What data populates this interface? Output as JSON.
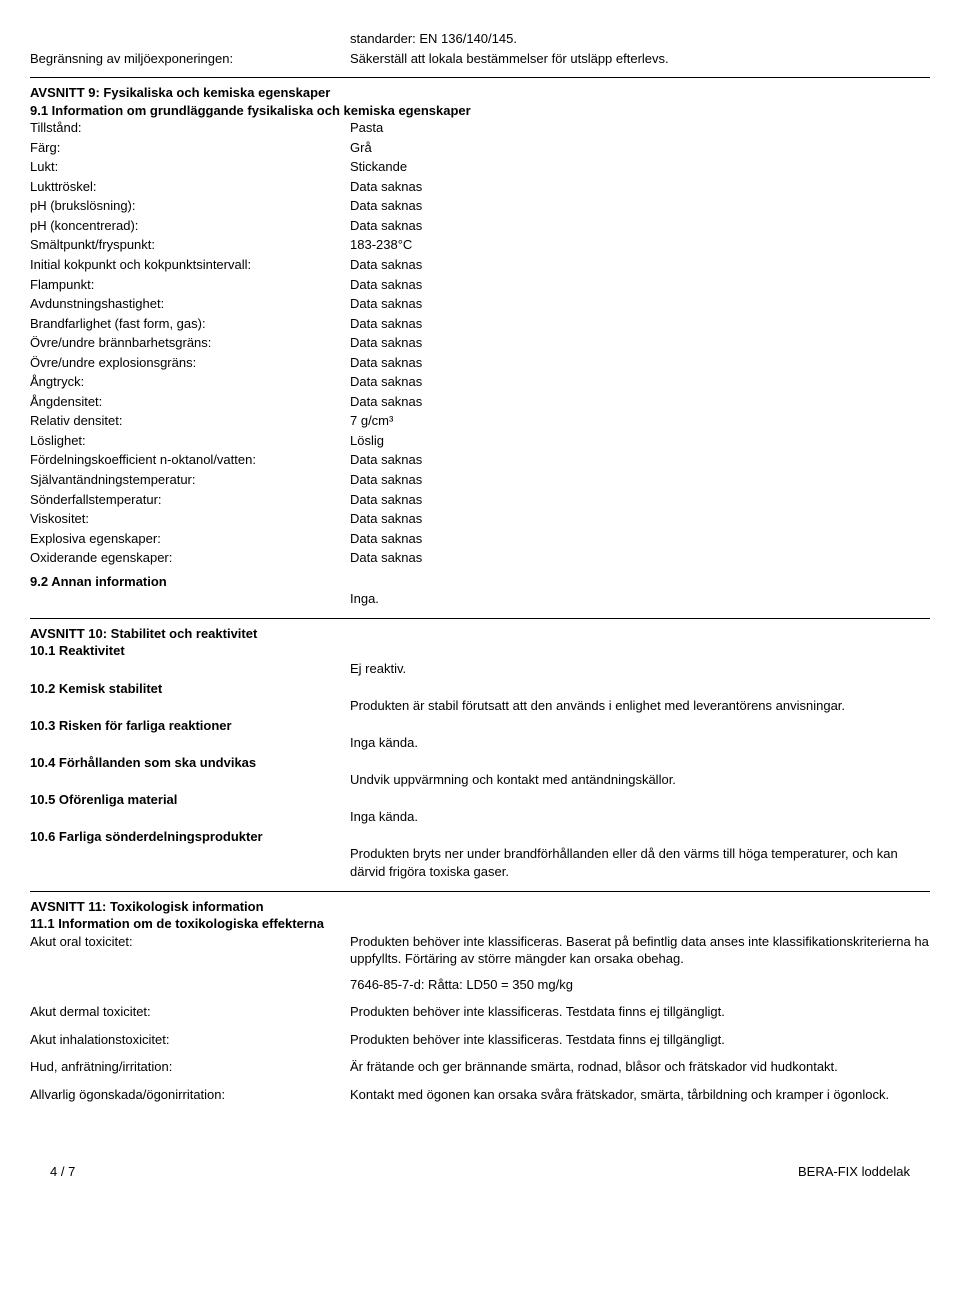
{
  "top": {
    "standards": {
      "label": "",
      "value": "standarder: EN 136/140/145."
    },
    "limit": {
      "label": "Begränsning av miljöexponeringen:",
      "value": "Säkerställ att lokala bestämmelser för utsläpp efterlevs."
    }
  },
  "sec9": {
    "title": "AVSNITT 9: Fysikaliska och kemiska egenskaper",
    "sub1": "9.1 Information om grundläggande fysikaliska och kemiska egenskaper",
    "rows": {
      "r0": {
        "label": "Tillstånd:",
        "value": "Pasta"
      },
      "r1": {
        "label": "Färg:",
        "value": "Grå"
      },
      "r2": {
        "label": "Lukt:",
        "value": "Stickande"
      },
      "r3": {
        "label": "Lukttröskel:",
        "value": "Data saknas"
      },
      "r4": {
        "label": "pH (brukslösning):",
        "value": "Data saknas"
      },
      "r5": {
        "label": "pH (koncentrerad):",
        "value": "Data saknas"
      },
      "r6": {
        "label": "Smältpunkt/fryspunkt:",
        "value": "183-238°C"
      },
      "r7": {
        "label": "Initial kokpunkt och kokpunktsintervall:",
        "value": "Data saknas"
      },
      "r8": {
        "label": "Flampunkt:",
        "value": "Data saknas"
      },
      "r9": {
        "label": "Avdunstningshastighet:",
        "value": "Data saknas"
      },
      "r10": {
        "label": "Brandfarlighet (fast form, gas):",
        "value": "Data saknas"
      },
      "r11": {
        "label": "Övre/undre brännbarhetsgräns:",
        "value": "Data saknas"
      },
      "r12": {
        "label": "Övre/undre explosionsgräns:",
        "value": "Data saknas"
      },
      "r13": {
        "label": "Ångtryck:",
        "value": "Data saknas"
      },
      "r14": {
        "label": "Ångdensitet:",
        "value": "Data saknas"
      },
      "r15": {
        "label": "Relativ densitet:",
        "value": "7 g/cm³"
      },
      "r16": {
        "label": "Löslighet:",
        "value": "Löslig"
      },
      "r17": {
        "label": "Fördelningskoefficient n-oktanol/vatten:",
        "value": "Data saknas"
      },
      "r18": {
        "label": "Självantändningstemperatur:",
        "value": "Data saknas"
      },
      "r19": {
        "label": "Sönderfallstemperatur:",
        "value": "Data saknas"
      },
      "r20": {
        "label": "Viskositet:",
        "value": "Data saknas"
      },
      "r21": {
        "label": "Explosiva egenskaper:",
        "value": "Data saknas"
      },
      "r22": {
        "label": "Oxiderande egenskaper:",
        "value": "Data saknas"
      }
    },
    "sub2": "9.2 Annan information",
    "sub2_value": "Inga."
  },
  "sec10": {
    "title": "AVSNITT 10: Stabilitet och reaktivitet",
    "s1": {
      "label": "10.1 Reaktivitet",
      "value": "Ej reaktiv."
    },
    "s2": {
      "label": "10.2 Kemisk stabilitet",
      "value": "Produkten är stabil förutsatt att den används i enlighet med leverantörens anvisningar."
    },
    "s3": {
      "label": "10.3 Risken för farliga reaktioner",
      "value": "Inga kända."
    },
    "s4": {
      "label": "10.4 Förhållanden som ska undvikas",
      "value": "Undvik uppvärmning och kontakt med antändningskällor."
    },
    "s5": {
      "label": "10.5 Oförenliga material",
      "value": "Inga kända."
    },
    "s6": {
      "label": "10.6 Farliga sönderdelningsprodukter",
      "value": "Produkten bryts ner under brandförhållanden eller då den värms till höga temperaturer, och kan därvid frigöra toxiska gaser."
    }
  },
  "sec11": {
    "title": "AVSNITT 11: Toxikologisk information",
    "sub1": "11.1 Information om de toxikologiska effekterna",
    "oral": {
      "label": "Akut oral toxicitet:",
      "value": "Produkten behöver inte klassificeras.  Baserat på befintlig data anses inte klassifikationskriterierna ha uppfyllts.  Förtäring av större mängder kan orsaka obehag.",
      "extra": "7646-85-7-d: Råtta: LD50 = 350 mg/kg"
    },
    "dermal": {
      "label": "Akut dermal toxicitet:",
      "value": "Produkten behöver inte klassificeras.  Testdata finns ej tillgängligt."
    },
    "inhal": {
      "label": "Akut inhalationstoxicitet:",
      "value": "Produkten behöver inte klassificeras.  Testdata finns ej tillgängligt."
    },
    "skin": {
      "label": "Hud, anfrätning/irritation:",
      "value": "Är frätande och ger brännande smärta, rodnad, blåsor och frätskador vid hudkontakt."
    },
    "eye": {
      "label": "Allvarlig ögonskada/ögonirritation:",
      "value": "Kontakt med ögonen kan orsaka svåra frätskador, smärta, tårbildning och kramper i ögonlock."
    }
  },
  "footer": {
    "page": "4 / 7",
    "product": "BERA-FIX loddelak"
  }
}
